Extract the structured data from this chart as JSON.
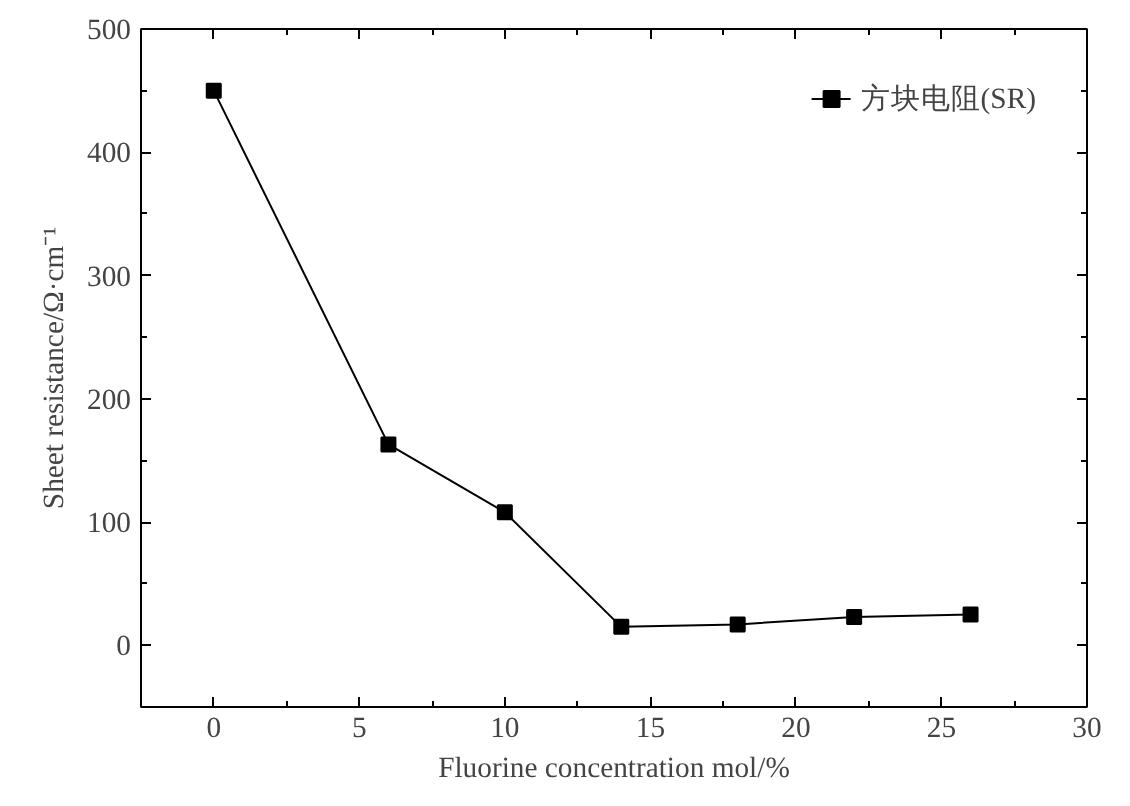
{
  "chart_data": {
    "type": "line",
    "xlabel": "Fluorine concentration mol/%",
    "ylabel": "Sheet resistance/Ω·cm⁻¹",
    "x": [
      0,
      6,
      10,
      14,
      18,
      22,
      26
    ],
    "series": [
      {
        "name": "方块电阻(SR)",
        "color": "#000000",
        "values": [
          450,
          163,
          108,
          15,
          17,
          23,
          25
        ]
      }
    ],
    "xlim": [
      -2.5,
      30
    ],
    "ylim": [
      -50,
      500
    ],
    "xticks": [
      0,
      5,
      10,
      15,
      20,
      25,
      30
    ],
    "yticks": [
      0,
      100,
      200,
      300,
      400,
      500
    ],
    "grid": false,
    "legend": "top right",
    "marker": "square",
    "line_style": "solid"
  }
}
